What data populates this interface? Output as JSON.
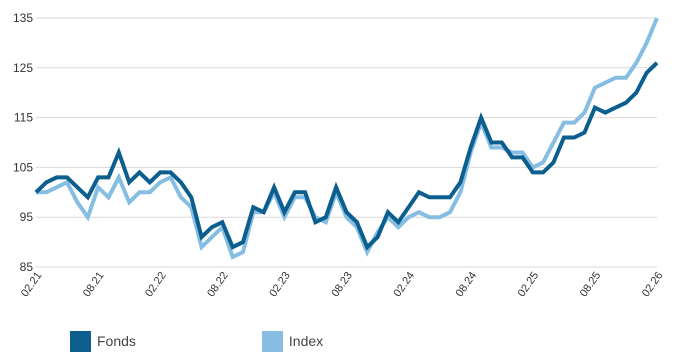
{
  "chart_data": {
    "type": "line",
    "x_ticks": [
      "02.21",
      "08.21",
      "02.22",
      "08.22",
      "02.23",
      "08.23",
      "02.24",
      "08.24",
      "02.25",
      "08.25",
      "02.26"
    ],
    "y_ticks": [
      85,
      95,
      105,
      115,
      125,
      135
    ],
    "ylim": [
      85,
      135
    ],
    "grid": true,
    "legend_position": "bottom-left",
    "series": [
      {
        "name": "Fonds",
        "color": "#0b5e8e",
        "values": [
          100,
          102,
          103,
          103,
          101,
          99,
          103,
          103,
          108,
          102,
          104,
          102,
          104,
          104,
          102,
          99,
          91,
          93,
          94,
          89,
          90,
          97,
          96,
          101,
          96,
          100,
          100,
          94,
          95,
          101,
          96,
          94,
          89,
          91,
          96,
          94,
          97,
          100,
          99,
          99,
          99,
          102,
          109,
          115,
          110,
          110,
          107,
          107,
          104,
          104,
          106,
          111,
          111,
          112,
          117,
          116,
          117,
          118,
          120,
          124,
          126
        ]
      },
      {
        "name": "Index",
        "color": "#85bde3",
        "values": [
          100,
          100,
          101,
          102,
          98,
          95,
          101,
          99,
          103,
          98,
          100,
          100,
          102,
          103,
          99,
          97,
          89,
          91,
          93,
          87,
          88,
          96,
          96,
          100,
          95,
          99,
          99,
          95,
          94,
          100,
          95,
          93,
          88,
          92,
          95,
          93,
          95,
          96,
          95,
          95,
          96,
          100,
          108,
          114,
          109,
          109,
          108,
          108,
          105,
          106,
          110,
          114,
          114,
          116,
          121,
          122,
          123,
          123,
          126,
          130,
          135
        ]
      }
    ]
  }
}
